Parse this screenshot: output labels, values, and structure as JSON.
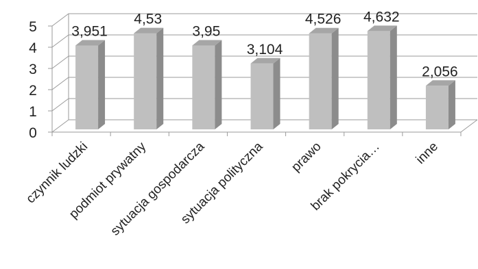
{
  "chart_data": {
    "type": "bar",
    "categories": [
      "czynnik ludzki",
      "podmiot prywatny",
      "sytuacja gospodarcza",
      "sytuacja polityczna",
      "prawo",
      "brak pokrycia…",
      "inne"
    ],
    "values": [
      3.951,
      4.53,
      3.95,
      3.104,
      4.526,
      4.632,
      2.056
    ],
    "value_labels": [
      "3,951",
      "4,53",
      "3,95",
      "3,104",
      "4,526",
      "4,632",
      "2,056"
    ],
    "y_ticks": [
      "0",
      "1",
      "2",
      "3",
      "4",
      "5"
    ],
    "ylim": [
      0,
      5
    ],
    "grid": true,
    "three_d": true,
    "colors": {
      "bar_front": "#bfbfbf",
      "bar_side": "#8c8c8c",
      "bar_top": "#a6a6a6",
      "grid": "#9a9a9a",
      "text": "#222222"
    }
  }
}
